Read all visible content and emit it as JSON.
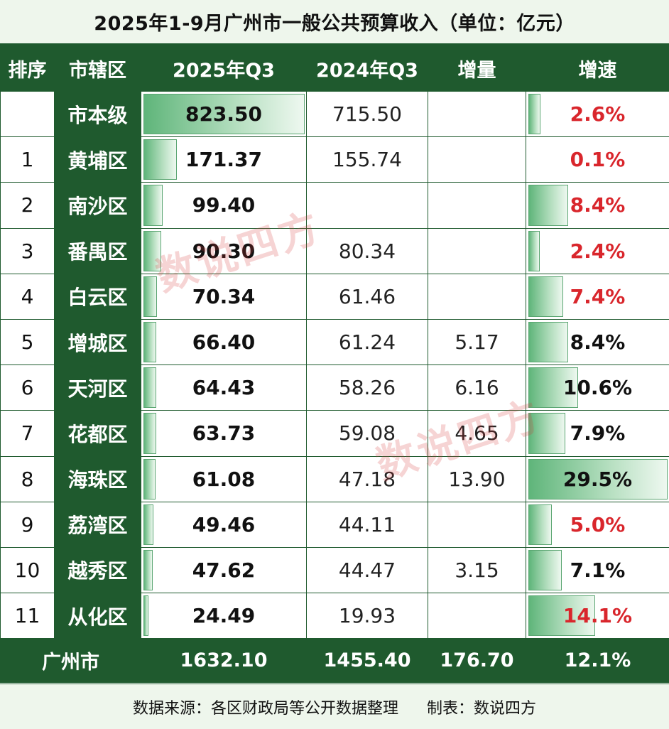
{
  "title": "2025年1-9月广州市一般公共预算收入（单位：亿元）",
  "headers": [
    "排序",
    "市辖区",
    "2025年Q3",
    "2024年Q3",
    "增量",
    "增速"
  ],
  "rows": [
    {
      "rank": "",
      "district": "市本级",
      "v2025": "823.50",
      "v2024": "715.50",
      "inc": "",
      "growth": "2.6%",
      "growth_color": "red",
      "v2025_num": 823.5,
      "growth_num": 2.6
    },
    {
      "rank": "1",
      "district": "黄埔区",
      "v2025": "171.37",
      "v2024": "155.74",
      "inc": "",
      "growth": "0.1%",
      "growth_color": "red",
      "v2025_num": 171.37,
      "growth_num": 0.1
    },
    {
      "rank": "2",
      "district": "南沙区",
      "v2025": "99.40",
      "v2024": "",
      "inc": "",
      "growth": "8.4%",
      "growth_color": "red",
      "v2025_num": 99.4,
      "growth_num": 8.4
    },
    {
      "rank": "3",
      "district": "番禺区",
      "v2025": "90.30",
      "v2024": "80.34",
      "inc": "",
      "growth": "2.4%",
      "growth_color": "red",
      "v2025_num": 90.3,
      "growth_num": 2.4
    },
    {
      "rank": "4",
      "district": "白云区",
      "v2025": "70.34",
      "v2024": "61.46",
      "inc": "",
      "growth": "7.4%",
      "growth_color": "red",
      "v2025_num": 70.34,
      "growth_num": 7.4
    },
    {
      "rank": "5",
      "district": "增城区",
      "v2025": "66.40",
      "v2024": "61.24",
      "inc": "5.17",
      "growth": "8.4%",
      "growth_color": "black",
      "v2025_num": 66.4,
      "growth_num": 8.4
    },
    {
      "rank": "6",
      "district": "天河区",
      "v2025": "64.43",
      "v2024": "58.26",
      "inc": "6.16",
      "growth": "10.6%",
      "growth_color": "black",
      "v2025_num": 64.43,
      "growth_num": 10.6
    },
    {
      "rank": "7",
      "district": "花都区",
      "v2025": "63.73",
      "v2024": "59.08",
      "inc": "4.65",
      "growth": "7.9%",
      "growth_color": "black",
      "v2025_num": 63.73,
      "growth_num": 7.9
    },
    {
      "rank": "8",
      "district": "海珠区",
      "v2025": "61.08",
      "v2024": "47.18",
      "inc": "13.90",
      "growth": "29.5%",
      "growth_color": "black",
      "v2025_num": 61.08,
      "growth_num": 29.5
    },
    {
      "rank": "9",
      "district": "荔湾区",
      "v2025": "49.46",
      "v2024": "44.11",
      "inc": "",
      "growth": "5.0%",
      "growth_color": "red",
      "v2025_num": 49.46,
      "growth_num": 5.0
    },
    {
      "rank": "10",
      "district": "越秀区",
      "v2025": "47.62",
      "v2024": "44.47",
      "inc": "3.15",
      "growth": "7.1%",
      "growth_color": "black",
      "v2025_num": 47.62,
      "growth_num": 7.1
    },
    {
      "rank": "11",
      "district": "从化区",
      "v2025": "24.49",
      "v2024": "19.93",
      "inc": "",
      "growth": "14.1%",
      "growth_color": "red",
      "v2025_num": 24.49,
      "growth_num": 14.1
    }
  ],
  "total": {
    "label": "广州市",
    "v2025": "1632.10",
    "v2024": "1455.40",
    "inc": "176.70",
    "growth": "12.1%"
  },
  "footer": {
    "source": "数据来源：各区财政局等公开数据整理",
    "maker": "制表：数说四方"
  },
  "watermark": "数说四方",
  "colors": {
    "header_green": "#1f5a2e",
    "bar_green": "#5fb57a",
    "growth_red": "#d9262c",
    "title_bg": "#eef6ec"
  }
}
